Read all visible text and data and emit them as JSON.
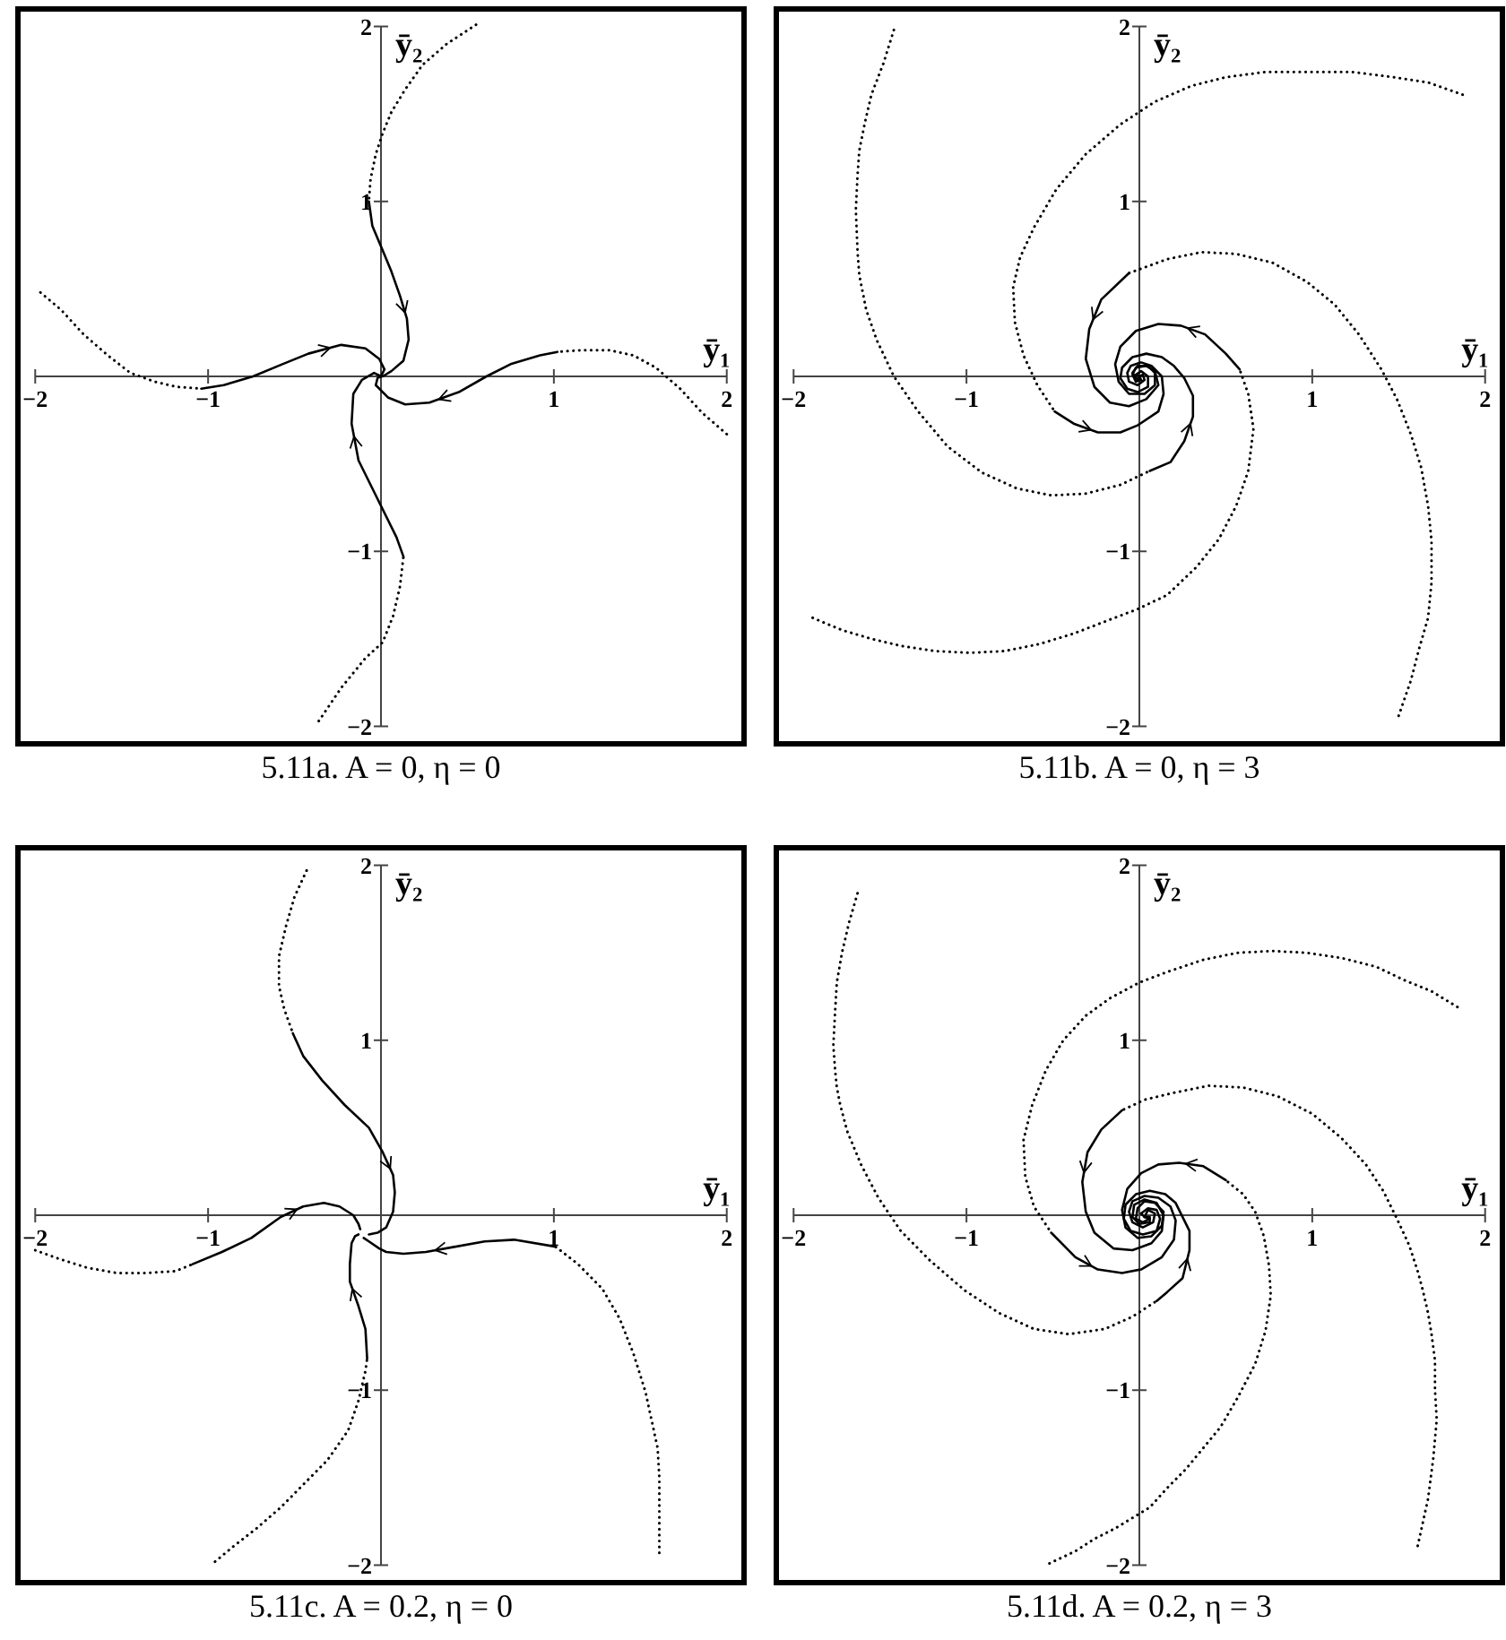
{
  "chart_data": [
    {
      "type": "line",
      "title": "5.11a. A = 0, η = 0",
      "xlabel": "ȳ₁",
      "ylabel": "ȳ₂",
      "xlim": [
        -2.1,
        2.1
      ],
      "ylim": [
        -2.1,
        2.1
      ],
      "xticks": [
        -2,
        -1,
        1,
        2
      ],
      "yticks": [
        -2,
        -1,
        1,
        2
      ],
      "series": [
        {
          "color": "#000000",
          "line_style": "dotted",
          "x": [
            0.55,
            0.38,
            0.24,
            0.14,
            0.06,
            0.01,
            -0.03,
            -0.06,
            -0.07
          ],
          "values": [
            2.01,
            1.9,
            1.78,
            1.64,
            1.51,
            1.39,
            1.27,
            1.13,
            1.0
          ]
        },
        {
          "color": "#000000",
          "line_style": "solid",
          "x": [
            -0.07,
            -0.05,
            0.01,
            0.06,
            0.11,
            0.15,
            0.16,
            0.13,
            0.06,
            0.01,
            0
          ],
          "values": [
            1.0,
            0.86,
            0.72,
            0.6,
            0.46,
            0.33,
            0.21,
            0.09,
            0.03,
            0.0,
            0
          ]
        },
        {
          "color": "#000000",
          "line_style": "dotted",
          "x": [
            2.0,
            1.86,
            1.73,
            1.59,
            1.46,
            1.32,
            1.16,
            1.02
          ],
          "values": [
            -0.33,
            -0.21,
            -0.07,
            0.05,
            0.12,
            0.15,
            0.15,
            0.14
          ]
        },
        {
          "color": "#000000",
          "line_style": "solid",
          "x": [
            1.02,
            0.92,
            0.75,
            0.61,
            0.45,
            0.28,
            0.14,
            0.04,
            -0.03,
            -0.02,
            0
          ],
          "values": [
            0.14,
            0.12,
            0.07,
            0.0,
            -0.09,
            -0.15,
            -0.16,
            -0.12,
            -0.05,
            -0.01,
            0
          ]
        },
        {
          "color": "#000000",
          "line_style": "dotted",
          "x": [
            -1.97,
            -1.85,
            -1.72,
            -1.58,
            -1.45,
            -1.31,
            -1.18,
            -1.04
          ],
          "values": [
            0.48,
            0.38,
            0.24,
            0.12,
            0.02,
            -0.03,
            -0.06,
            -0.07
          ]
        },
        {
          "color": "#000000",
          "line_style": "solid",
          "x": [
            -1.04,
            -0.91,
            -0.74,
            -0.57,
            -0.42,
            -0.23,
            -0.09,
            -0.01,
            0.02,
            0
          ],
          "values": [
            -0.07,
            -0.05,
            0.0,
            0.07,
            0.13,
            0.18,
            0.16,
            0.1,
            0.04,
            0
          ]
        },
        {
          "color": "#000000",
          "line_style": "dotted",
          "x": [
            -0.36,
            -0.23,
            -0.09,
            0.01,
            0.07,
            0.11,
            0.13
          ],
          "values": [
            -1.97,
            -1.78,
            -1.61,
            -1.52,
            -1.37,
            -1.2,
            -1.03
          ]
        },
        {
          "color": "#000000",
          "line_style": "solid",
          "x": [
            0.13,
            0.09,
            -0.03,
            -0.13,
            -0.17,
            -0.16,
            -0.11,
            -0.04,
            0
          ],
          "values": [
            -1.03,
            -0.92,
            -0.68,
            -0.48,
            -0.27,
            -0.1,
            -0.02,
            0.02,
            0
          ]
        }
      ]
    },
    {
      "type": "line",
      "title": "5.11b. A = 0, η = 3",
      "xlabel": "ȳ₁",
      "ylabel": "ȳ₂",
      "xlim": [
        -2.1,
        2.1
      ],
      "ylim": [
        -2.1,
        2.1
      ],
      "xticks": [
        -2,
        -1,
        1,
        2
      ],
      "yticks": [
        -2,
        -1,
        1,
        2
      ],
      "series": [
        {
          "color": "#000000",
          "line_style": "dotted",
          "x": [
            1.87,
            1.67,
            1.47,
            1.23,
            1.0,
            0.73,
            0.5,
            0.3,
            0.09,
            -0.11,
            -0.31,
            -0.48,
            -0.61,
            -0.69,
            -0.73,
            -0.72,
            -0.67,
            -0.59,
            -0.49
          ],
          "values": [
            1.61,
            1.68,
            1.71,
            1.74,
            1.74,
            1.74,
            1.71,
            1.66,
            1.57,
            1.44,
            1.27,
            1.07,
            0.85,
            0.68,
            0.51,
            0.31,
            0.12,
            -0.05,
            -0.2
          ]
        },
        {
          "color": "#000000",
          "line_style": "solid",
          "x": [
            -0.49,
            -0.38,
            -0.24,
            -0.11,
            -0.01,
            0.11,
            0.14,
            0.13,
            0.07,
            0.01,
            -0.05,
            -0.07,
            -0.06,
            -0.01,
            0.03,
            0.02,
            0
          ],
          "values": [
            -0.2,
            -0.27,
            -0.32,
            -0.32,
            -0.28,
            -0.2,
            -0.1,
            0.0,
            0.06,
            0.08,
            0.06,
            0.02,
            -0.03,
            -0.05,
            -0.02,
            0.01,
            0
          ]
        },
        {
          "color": "#000000",
          "line_style": "dotted",
          "x": [
            1.5,
            1.57,
            1.62,
            1.67,
            1.69,
            1.69,
            1.67,
            1.63,
            1.57,
            1.49,
            1.4,
            1.27,
            1.13,
            0.97,
            0.77,
            0.56,
            0.36,
            0.16,
            -0.06
          ],
          "values": [
            -1.94,
            -1.74,
            -1.55,
            -1.38,
            -1.18,
            -0.94,
            -0.74,
            -0.52,
            -0.33,
            -0.13,
            0.04,
            0.24,
            0.41,
            0.54,
            0.65,
            0.7,
            0.71,
            0.67,
            0.59
          ]
        },
        {
          "color": "#000000",
          "line_style": "solid",
          "x": [
            -0.06,
            -0.22,
            -0.29,
            -0.31,
            -0.26,
            -0.17,
            -0.06,
            0.04,
            0.11,
            0.09,
            0.04,
            -0.02,
            -0.04,
            -0.02,
            0.01,
            0
          ],
          "values": [
            0.59,
            0.44,
            0.27,
            0.1,
            -0.06,
            -0.15,
            -0.17,
            -0.13,
            -0.05,
            0.03,
            0.06,
            0.05,
            0.01,
            -0.03,
            -0.02,
            0
          ]
        },
        {
          "color": "#000000",
          "line_style": "dotted",
          "x": [
            -1.89,
            -1.72,
            -1.55,
            -1.38,
            -1.18,
            -0.98,
            -0.78,
            -0.58,
            -0.38,
            -0.17,
            -0.01,
            0.16,
            0.33,
            0.46,
            0.56,
            0.63,
            0.66,
            0.63,
            0.58
          ],
          "values": [
            -1.38,
            -1.45,
            -1.5,
            -1.54,
            -1.57,
            -1.58,
            -1.57,
            -1.53,
            -1.47,
            -1.39,
            -1.33,
            -1.25,
            -1.09,
            -0.93,
            -0.74,
            -0.54,
            -0.3,
            -0.1,
            0.04
          ]
        },
        {
          "color": "#000000",
          "line_style": "solid",
          "x": [
            0.58,
            0.5,
            0.38,
            0.24,
            0.11,
            -0.02,
            -0.11,
            -0.14,
            -0.12,
            -0.06,
            0.03,
            0.09,
            0.09,
            0.05,
            -0.01,
            -0.04,
            -0.01,
            0
          ],
          "values": [
            0.04,
            0.13,
            0.24,
            0.29,
            0.3,
            0.26,
            0.17,
            0.07,
            -0.03,
            -0.1,
            -0.1,
            -0.05,
            0.02,
            0.06,
            0.06,
            0.02,
            -0.02,
            0
          ]
        },
        {
          "color": "#000000",
          "line_style": "dotted",
          "x": [
            -1.42,
            -1.48,
            -1.55,
            -1.59,
            -1.62,
            -1.63,
            -1.64,
            -1.63,
            -1.62,
            -1.58,
            -1.52,
            -1.42,
            -1.28,
            -1.11,
            -0.91,
            -0.71,
            -0.51,
            -0.31,
            -0.11,
            0.06
          ],
          "values": [
            1.98,
            1.79,
            1.61,
            1.44,
            1.29,
            1.15,
            0.95,
            0.71,
            0.58,
            0.38,
            0.21,
            0.0,
            -0.2,
            -0.4,
            -0.55,
            -0.64,
            -0.68,
            -0.67,
            -0.62,
            -0.54
          ]
        },
        {
          "color": "#000000",
          "line_style": "solid",
          "x": [
            0.06,
            0.18,
            0.26,
            0.31,
            0.31,
            0.26,
            0.2,
            0.13,
            0.04,
            -0.04,
            -0.1,
            -0.11,
            -0.07,
            -0.01,
            0.05,
            0.05,
            0.01,
            -0.02,
            0
          ],
          "values": [
            -0.54,
            -0.49,
            -0.37,
            -0.23,
            -0.11,
            -0.01,
            0.06,
            0.11,
            0.13,
            0.11,
            0.05,
            -0.01,
            -0.07,
            -0.09,
            -0.06,
            0.0,
            0.03,
            0.01,
            0
          ]
        }
      ]
    },
    {
      "type": "line",
      "title": "5.11c. A = 0.2, η = 0",
      "xlabel": "ȳ₁",
      "ylabel": "ȳ₂",
      "xlim": [
        -2.1,
        2.1
      ],
      "ylim": [
        -2.1,
        2.1
      ],
      "xticks": [
        -2,
        -1,
        1,
        2
      ],
      "yticks": [
        -2,
        -1,
        1,
        2
      ],
      "series": [
        {
          "color": "#000000",
          "line_style": "dotted",
          "x": [
            -0.43,
            -0.5,
            -0.55,
            -0.59,
            -0.59,
            -0.56,
            -0.51
          ],
          "values": [
            1.97,
            1.82,
            1.65,
            1.48,
            1.31,
            1.18,
            1.04
          ]
        },
        {
          "color": "#000000",
          "line_style": "solid",
          "x": [
            -0.51,
            -0.45,
            -0.34,
            -0.21,
            -0.07,
            0.01,
            0.07,
            0.08,
            0.07,
            0.03,
            -0.02,
            -0.07
          ],
          "values": [
            1.04,
            0.91,
            0.77,
            0.63,
            0.5,
            0.36,
            0.23,
            0.13,
            0.02,
            -0.07,
            -0.1,
            -0.11
          ]
        },
        {
          "color": "#000000",
          "line_style": "dotted",
          "x": [
            1.61,
            1.61,
            1.61,
            1.6,
            1.53,
            1.46,
            1.38,
            1.28,
            1.14,
            1.01
          ],
          "values": [
            -1.93,
            -1.71,
            -1.5,
            -1.33,
            -1.01,
            -0.79,
            -0.59,
            -0.42,
            -0.28,
            -0.18
          ]
        },
        {
          "color": "#000000",
          "line_style": "solid",
          "x": [
            1.01,
            0.77,
            0.6,
            0.43,
            0.26,
            0.13,
            0.03,
            -0.01,
            -0.07,
            -0.1
          ],
          "values": [
            -0.18,
            -0.14,
            -0.15,
            -0.18,
            -0.21,
            -0.22,
            -0.21,
            -0.19,
            -0.15,
            -0.13
          ]
        },
        {
          "color": "#000000",
          "line_style": "dotted",
          "x": [
            -2.0,
            -1.86,
            -1.7,
            -1.53,
            -1.36,
            -1.19,
            -1.09
          ],
          "values": [
            -0.2,
            -0.25,
            -0.3,
            -0.33,
            -0.33,
            -0.32,
            -0.28
          ]
        },
        {
          "color": "#000000",
          "line_style": "solid",
          "x": [
            -1.09,
            -0.92,
            -0.75,
            -0.58,
            -0.45,
            -0.33,
            -0.24,
            -0.16,
            -0.13,
            -0.12
          ],
          "values": [
            -0.28,
            -0.21,
            -0.13,
            -0.01,
            0.05,
            0.07,
            0.05,
            0.0,
            -0.05,
            -0.08
          ]
        },
        {
          "color": "#000000",
          "line_style": "dotted",
          "x": [
            -0.96,
            -0.85,
            -0.72,
            -0.58,
            -0.45,
            -0.31,
            -0.19,
            -0.13,
            -0.09,
            -0.08
          ],
          "values": [
            -1.98,
            -1.89,
            -1.79,
            -1.67,
            -1.54,
            -1.4,
            -1.23,
            -1.06,
            -0.89,
            -0.82
          ]
        },
        {
          "color": "#000000",
          "line_style": "solid",
          "x": [
            -0.08,
            -0.09,
            -0.13,
            -0.18,
            -0.18,
            -0.17,
            -0.15,
            -0.13
          ],
          "values": [
            -0.82,
            -0.65,
            -0.52,
            -0.38,
            -0.28,
            -0.16,
            -0.12,
            -0.11
          ]
        }
      ]
    },
    {
      "type": "line",
      "title": "5.11d. A = 0.2, η = 3",
      "xlabel": "ȳ₁",
      "ylabel": "ȳ₂",
      "xlim": [
        -2.1,
        2.1
      ],
      "ylim": [
        -2.1,
        2.1
      ],
      "xticks": [
        -2,
        -1,
        1,
        2
      ],
      "yticks": [
        -2,
        -1,
        1,
        2
      ],
      "series": [
        {
          "color": "#000000",
          "line_style": "dotted",
          "x": [
            1.84,
            1.69,
            1.54,
            1.37,
            1.17,
            0.97,
            0.77,
            0.57,
            0.37,
            0.16,
            0.0,
            -0.17,
            -0.31,
            -0.44,
            -0.54,
            -0.62,
            -0.67,
            -0.66,
            -0.61,
            -0.51
          ],
          "values": [
            1.19,
            1.28,
            1.34,
            1.42,
            1.47,
            1.5,
            1.51,
            1.5,
            1.46,
            1.39,
            1.33,
            1.24,
            1.14,
            1.0,
            0.83,
            0.63,
            0.43,
            0.22,
            0.05,
            -0.1
          ]
        },
        {
          "color": "#000000",
          "line_style": "solid",
          "x": [
            -0.51,
            -0.37,
            -0.24,
            -0.1,
            0.01,
            0.13,
            0.2,
            0.21,
            0.18,
            0.11,
            0.03,
            -0.04,
            -0.06,
            -0.04,
            0.02,
            0.08,
            0.09,
            0.05,
            0.03
          ],
          "values": [
            -0.1,
            -0.24,
            -0.31,
            -0.33,
            -0.31,
            -0.24,
            -0.14,
            -0.03,
            0.05,
            0.1,
            0.11,
            0.08,
            0.02,
            -0.04,
            -0.07,
            -0.04,
            0.01,
            0.03,
            -0.01
          ]
        },
        {
          "color": "#000000",
          "line_style": "dotted",
          "x": [
            1.61,
            1.67,
            1.7,
            1.72,
            1.71,
            1.71,
            1.69,
            1.67,
            1.64,
            1.61,
            1.56,
            1.49,
            1.41,
            1.31,
            1.17,
            1.0,
            0.8,
            0.6,
            0.4,
            0.2,
            0.03,
            -0.1
          ],
          "values": [
            -1.89,
            -1.62,
            -1.39,
            -1.17,
            -1.0,
            -0.83,
            -0.68,
            -0.56,
            -0.43,
            -0.32,
            -0.17,
            -0.02,
            0.14,
            0.29,
            0.44,
            0.58,
            0.68,
            0.73,
            0.74,
            0.7,
            0.66,
            0.6
          ]
        },
        {
          "color": "#000000",
          "line_style": "solid",
          "x": [
            -0.1,
            -0.22,
            -0.3,
            -0.33,
            -0.31,
            -0.26,
            -0.15,
            -0.04,
            0.07,
            0.13,
            0.14,
            0.1,
            0.03,
            -0.03,
            -0.04,
            0.0,
            0.06,
            0.06,
            0.03
          ],
          "values": [
            0.6,
            0.49,
            0.36,
            0.19,
            0.02,
            -0.1,
            -0.19,
            -0.2,
            -0.16,
            -0.09,
            0.0,
            0.07,
            0.09,
            0.06,
            -0.01,
            -0.05,
            -0.04,
            -0.01,
            -0.01
          ]
        },
        {
          "color": "#000000",
          "line_style": "dotted",
          "x": [
            -1.63,
            -1.68,
            -1.72,
            -1.75,
            -1.76,
            -1.77,
            -1.76,
            -1.75,
            -1.73,
            -1.69,
            -1.61,
            -1.51,
            -1.38,
            -1.21,
            -1.01,
            -0.81,
            -0.61,
            -0.41,
            -0.2,
            -0.04,
            0.1
          ],
          "values": [
            1.84,
            1.67,
            1.5,
            1.33,
            1.16,
            0.97,
            0.83,
            0.73,
            0.63,
            0.48,
            0.29,
            0.1,
            -0.09,
            -0.26,
            -0.43,
            -0.56,
            -0.65,
            -0.68,
            -0.65,
            -0.58,
            -0.49
          ]
        },
        {
          "color": "#000000",
          "line_style": "solid",
          "x": [
            0.1,
            0.16,
            0.25,
            0.29,
            0.29,
            0.21,
            0.15,
            0.06,
            -0.02,
            -0.08,
            -0.09,
            -0.05,
            0.02,
            0.1,
            0.12,
            0.1,
            0.05,
            0.01,
            0.03
          ],
          "values": [
            -0.49,
            -0.44,
            -0.36,
            -0.2,
            -0.09,
            0.07,
            0.12,
            0.14,
            0.12,
            0.06,
            -0.02,
            -0.09,
            -0.11,
            -0.09,
            -0.02,
            0.03,
            0.04,
            0.01,
            -0.01
          ]
        },
        {
          "color": "#000000",
          "line_style": "dotted",
          "x": [
            -0.52,
            -0.37,
            -0.26,
            -0.14,
            -0.04,
            0.06,
            0.16,
            0.27,
            0.37,
            0.47,
            0.57,
            0.67,
            0.73,
            0.76,
            0.75,
            0.72,
            0.67,
            0.6,
            0.5
          ],
          "values": [
            -1.99,
            -1.92,
            -1.85,
            -1.79,
            -1.73,
            -1.67,
            -1.56,
            -1.45,
            -1.33,
            -1.21,
            -1.04,
            -0.85,
            -0.66,
            -0.46,
            -0.29,
            -0.12,
            0.02,
            0.12,
            0.2
          ]
        },
        {
          "color": "#000000",
          "line_style": "solid",
          "x": [
            0.5,
            0.37,
            0.23,
            0.11,
            0.01,
            -0.07,
            -0.1,
            -0.08,
            -0.01,
            0.07,
            0.13,
            0.14,
            0.09,
            0.03,
            -0.01,
            -0.02,
            0.02,
            0.06,
            0.03
          ],
          "values": [
            0.2,
            0.28,
            0.3,
            0.29,
            0.24,
            0.15,
            0.03,
            -0.07,
            -0.13,
            -0.12,
            -0.06,
            0.02,
            0.07,
            0.08,
            0.04,
            -0.02,
            -0.04,
            -0.02,
            -0.01
          ]
        }
      ]
    }
  ]
}
